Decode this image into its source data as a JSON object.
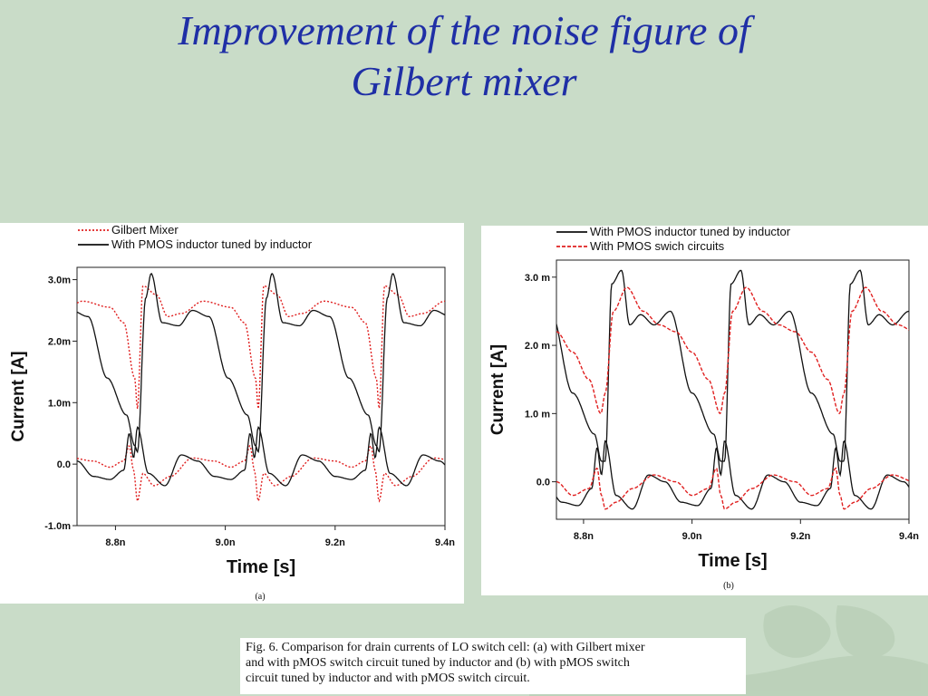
{
  "slide": {
    "title_line1": "Improvement of the noise figure of",
    "title_line2": "Gilbert mixer"
  },
  "caption": {
    "line1": "Fig. 6.   Comparison for drain currents of LO switch cell: (a) with Gilbert mixer",
    "line2": "and with pMOS switch circuit tuned by inductor and (b) with pMOS switch",
    "line3": "circuit tuned by inductor and with pMOS switch circuit."
  },
  "colors": {
    "title": "#1f2fa6",
    "background": "#c9dcc8",
    "red_series": "#e02020",
    "black_series": "#111111"
  },
  "chart_data": [
    {
      "type": "line",
      "panel_label": "(a)",
      "xlabel": "Time [s]",
      "ylabel": "Current [A]",
      "xlim": [
        8.73,
        9.4
      ],
      "ylim": [
        -1.0,
        3.2
      ],
      "xticks": [
        8.8,
        9.0,
        9.2,
        9.4
      ],
      "xtick_labels": [
        "8.8n",
        "9.0n",
        "9.2n",
        "9.4n"
      ],
      "yticks": [
        -1.0,
        0.0,
        1.0,
        2.0,
        3.0
      ],
      "ytick_labels": [
        "-1.0m",
        "0.0",
        "1.0m",
        "2.0m",
        "3.0m"
      ],
      "legend_position": "top-left",
      "period_ns": 0.22,
      "phase_ns": 0.04,
      "series": [
        {
          "name": "Gilbert Mixer",
          "style": "dotted",
          "color": "#e02020",
          "high_x": [
            0.0,
            0.01,
            0.035,
            0.055,
            0.08,
            0.12,
            0.17,
            0.195,
            0.215,
            0.22
          ],
          "high_y": [
            0.9,
            2.9,
            2.75,
            2.4,
            2.45,
            2.65,
            2.55,
            2.3,
            1.4,
            0.9
          ],
          "low_x": [
            0.0,
            0.01,
            0.03,
            0.06,
            0.1,
            0.14,
            0.17,
            0.195,
            0.205,
            0.213,
            0.22
          ],
          "low_y": [
            -0.6,
            -0.15,
            -0.35,
            -0.2,
            0.1,
            0.05,
            -0.05,
            0.05,
            0.3,
            -0.1,
            -0.6
          ]
        },
        {
          "name": "With PMOS inductor tuned by inductor",
          "style": "solid",
          "color": "#111111",
          "high_x": [
            0.0,
            0.015,
            0.025,
            0.045,
            0.075,
            0.1,
            0.13,
            0.165,
            0.2,
            0.215,
            0.22
          ],
          "high_y": [
            0.2,
            2.7,
            3.1,
            2.3,
            2.25,
            2.5,
            2.4,
            1.4,
            0.8,
            0.3,
            0.2
          ],
          "low_x": [
            0.0,
            0.02,
            0.05,
            0.08,
            0.11,
            0.14,
            0.17,
            0.195,
            0.205,
            0.213,
            0.22
          ],
          "low_y": [
            0.6,
            -0.15,
            -0.35,
            0.15,
            0.05,
            -0.2,
            -0.25,
            -0.1,
            0.5,
            0.1,
            0.6
          ]
        }
      ]
    },
    {
      "type": "line",
      "panel_label": "(b)",
      "xlabel": "Time [s]",
      "ylabel": "Current [A]",
      "xlim": [
        8.75,
        9.4
      ],
      "ylim": [
        -0.55,
        3.25
      ],
      "xticks": [
        8.8,
        9.0,
        9.2,
        9.4
      ],
      "xtick_labels": [
        "8.8n",
        "9.0n",
        "9.2n",
        "9.4n"
      ],
      "yticks": [
        0.0,
        1.0,
        2.0,
        3.0
      ],
      "ytick_labels": [
        "0.0",
        "1.0 m",
        "2.0 m",
        "3.0 m"
      ],
      "legend_position": "top-left",
      "period_ns": 0.22,
      "phase_ns": 0.04,
      "series": [
        {
          "name": "With PMOS inductor tuned by inductor",
          "style": "solid",
          "color": "#111111",
          "high_x": [
            0.0,
            0.012,
            0.03,
            0.045,
            0.065,
            0.09,
            0.12,
            0.16,
            0.2,
            0.213,
            0.22
          ],
          "high_y": [
            0.3,
            2.9,
            3.1,
            2.3,
            2.45,
            2.3,
            2.5,
            1.3,
            0.7,
            0.3,
            0.3
          ],
          "low_x": [
            0.0,
            0.02,
            0.05,
            0.08,
            0.11,
            0.14,
            0.17,
            0.195,
            0.205,
            0.213,
            0.22
          ],
          "low_y": [
            0.6,
            -0.2,
            -0.4,
            0.1,
            0.0,
            -0.3,
            -0.35,
            -0.1,
            0.5,
            0.1,
            0.6
          ]
        },
        {
          "name": "With PMOS swich circuits",
          "style": "dashed",
          "color": "#e02020",
          "high_x": [
            0.0,
            0.015,
            0.04,
            0.07,
            0.1,
            0.13,
            0.16,
            0.19,
            0.212,
            0.22
          ],
          "high_y": [
            1.3,
            2.5,
            2.85,
            2.5,
            2.3,
            2.2,
            1.9,
            1.5,
            1.0,
            1.3
          ],
          "low_x": [
            0.0,
            0.02,
            0.05,
            0.09,
            0.13,
            0.16,
            0.19,
            0.205,
            0.213,
            0.22
          ],
          "low_y": [
            -0.4,
            -0.3,
            -0.1,
            0.1,
            0.0,
            -0.2,
            -0.1,
            0.2,
            -0.2,
            -0.4
          ]
        }
      ]
    }
  ]
}
